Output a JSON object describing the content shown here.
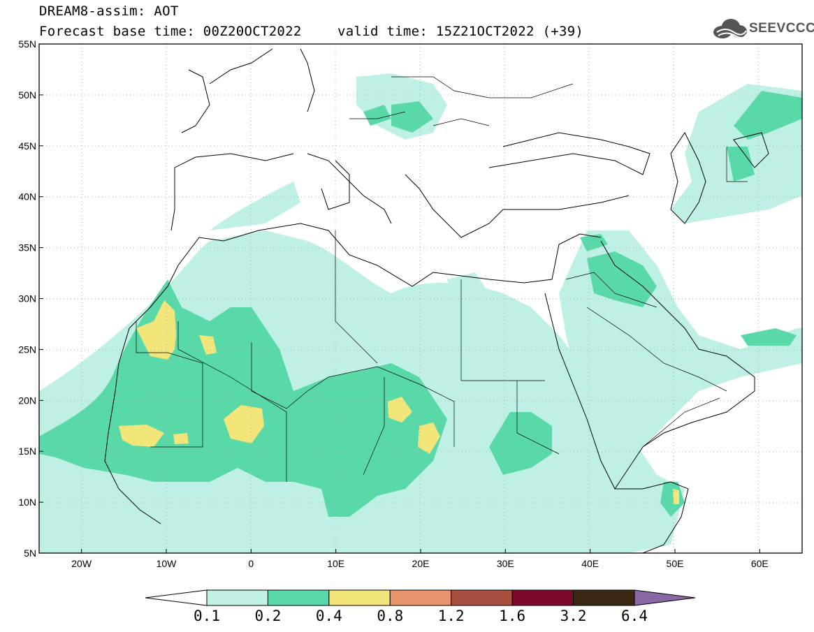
{
  "header": {
    "title": "DREAM8-assim: AOT",
    "base_time": "Forecast base time: 00Z20OCT2022",
    "valid_time": "valid time: 15Z21OCT2022 (+39)",
    "logo_text": "SEEVCCC"
  },
  "map": {
    "lon_range": [
      -25,
      65
    ],
    "lat_range": [
      5,
      55
    ],
    "lon_ticks": [
      {
        "value": -20,
        "label": "20W"
      },
      {
        "value": -10,
        "label": "10W"
      },
      {
        "value": 0,
        "label": "0"
      },
      {
        "value": 10,
        "label": "10E"
      },
      {
        "value": 20,
        "label": "20E"
      },
      {
        "value": 30,
        "label": "30E"
      },
      {
        "value": 40,
        "label": "40E"
      },
      {
        "value": 50,
        "label": "50E"
      },
      {
        "value": 60,
        "label": "60E"
      }
    ],
    "lat_ticks": [
      {
        "value": 55,
        "label": "55N"
      },
      {
        "value": 50,
        "label": "50N"
      },
      {
        "value": 45,
        "label": "45N"
      },
      {
        "value": 40,
        "label": "40N"
      },
      {
        "value": 35,
        "label": "35N"
      },
      {
        "value": 30,
        "label": "30N"
      },
      {
        "value": 25,
        "label": "25N"
      },
      {
        "value": 20,
        "label": "20N"
      },
      {
        "value": 15,
        "label": "15N"
      },
      {
        "value": 10,
        "label": "10N"
      },
      {
        "value": 5,
        "label": "5N"
      }
    ],
    "grid": "dotted every 10° lon / 5° lat"
  },
  "colorbar": {
    "labels": [
      "0.1",
      "0.2",
      "0.4",
      "0.8",
      "1.2",
      "1.6",
      "3.2",
      "6.4"
    ],
    "colors": [
      "#bff0e6",
      "#5ad9a8",
      "#f2e57a",
      "#e8946a",
      "#a8503e",
      "#7a0a2a",
      "#3a2812",
      "#8a68a6"
    ]
  }
}
